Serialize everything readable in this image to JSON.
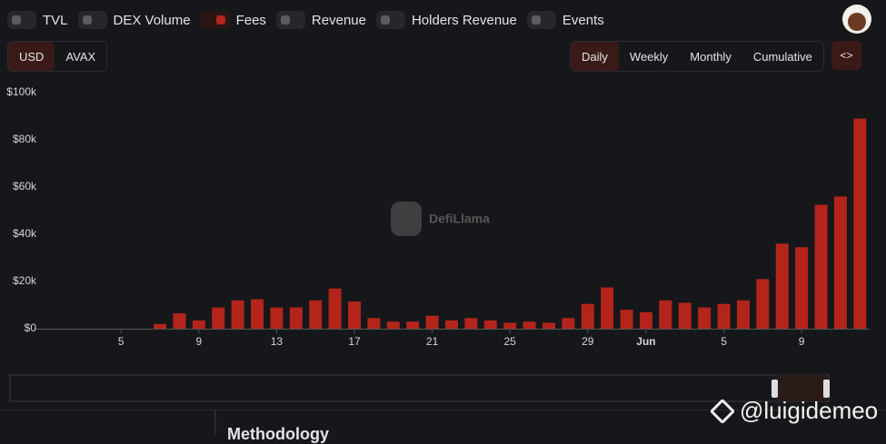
{
  "toggles": [
    {
      "label": "TVL",
      "active": false
    },
    {
      "label": "DEX Volume",
      "active": false
    },
    {
      "label": "Fees",
      "active": true
    },
    {
      "label": "Revenue",
      "active": false
    },
    {
      "label": "Holders Revenue",
      "active": false
    },
    {
      "label": "Events",
      "active": false
    }
  ],
  "currency": [
    {
      "label": "USD",
      "active": true
    },
    {
      "label": "AVAX",
      "active": false
    }
  ],
  "periods": [
    {
      "label": "Daily",
      "active": true
    },
    {
      "label": "Weekly",
      "active": false
    },
    {
      "label": "Monthly",
      "active": false
    },
    {
      "label": "Cumulative",
      "active": false
    }
  ],
  "embed_label": "<>",
  "watermark": "DefiLlama",
  "footer_heading": "Methodology",
  "overlay": "@luigidemeo",
  "chart_data": {
    "type": "bar",
    "color": "#b3241b",
    "grid": false,
    "categories": [
      null,
      null,
      null,
      null,
      "5",
      null,
      null,
      null,
      "9",
      null,
      null,
      null,
      "13",
      null,
      null,
      null,
      "17",
      null,
      null,
      null,
      "21",
      null,
      null,
      null,
      "25",
      null,
      null,
      null,
      "29",
      null,
      null,
      "Jun",
      null,
      null,
      null,
      "5",
      null,
      null,
      null,
      "9",
      null,
      null,
      null
    ],
    "values": [
      null,
      null,
      null,
      null,
      null,
      null,
      2000,
      6500,
      3500,
      9000,
      12000,
      12500,
      9000,
      9000,
      12000,
      17000,
      11500,
      4500,
      3000,
      3000,
      5500,
      3500,
      4500,
      3500,
      2500,
      3000,
      2500,
      4500,
      10500,
      17500,
      8000,
      7000,
      12000,
      11000,
      9000,
      10500,
      12000,
      21000,
      36000,
      34500,
      52500,
      56000,
      89000
    ],
    "ylim": [
      0,
      100000
    ],
    "yticks": [
      {
        "value": 0,
        "label": "$0"
      },
      {
        "value": 20000,
        "label": "$20k"
      },
      {
        "value": 40000,
        "label": "$40k"
      },
      {
        "value": 60000,
        "label": "$60k"
      },
      {
        "value": 80000,
        "label": "$80k"
      },
      {
        "value": 100000,
        "label": "$100k"
      }
    ]
  }
}
